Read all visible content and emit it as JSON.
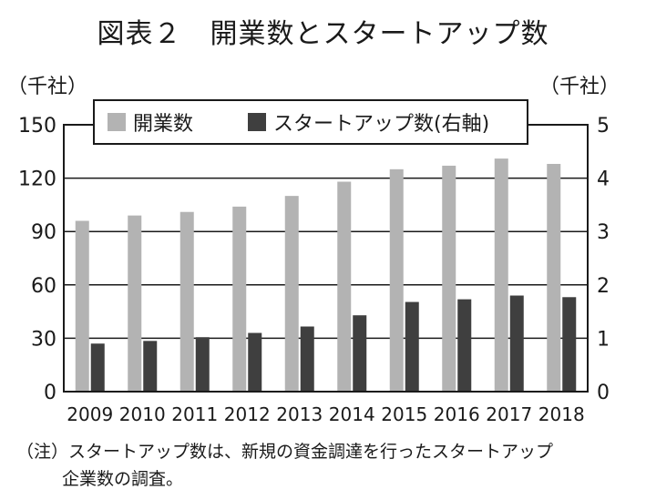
{
  "chart_data": {
    "type": "bar",
    "title": "図表２　開業数とスタートアップ数",
    "categories": [
      "2009",
      "2010",
      "2011",
      "2012",
      "2013",
      "2014",
      "2015",
      "2016",
      "2017",
      "2018"
    ],
    "series": [
      {
        "name": "開業数",
        "axis": "left",
        "color": "#b3b3b3",
        "values": [
          96,
          99,
          101,
          104,
          110,
          118,
          125,
          127,
          131,
          128
        ]
      },
      {
        "name": "スタートアップ数(右軸)",
        "axis": "right",
        "color": "#3f3f3f",
        "values": [
          0.9,
          0.95,
          1.02,
          1.1,
          1.22,
          1.43,
          1.68,
          1.73,
          1.8,
          1.77
        ]
      }
    ],
    "y_left": {
      "unit": "（千社）",
      "ylim": [
        0,
        150
      ],
      "ticks": [
        "0",
        "30",
        "60",
        "90",
        "120",
        "150"
      ]
    },
    "y_right": {
      "unit": "（千社）",
      "ylim": [
        0,
        5
      ],
      "ticks": [
        "0",
        "1",
        "2",
        "3",
        "4",
        "5"
      ]
    },
    "grid": true,
    "legend_position": "top",
    "note": {
      "line1": "（注）スタートアップ数は、新規の資金調達を行ったスタートアップ",
      "line2": "企業数の調査。"
    }
  }
}
